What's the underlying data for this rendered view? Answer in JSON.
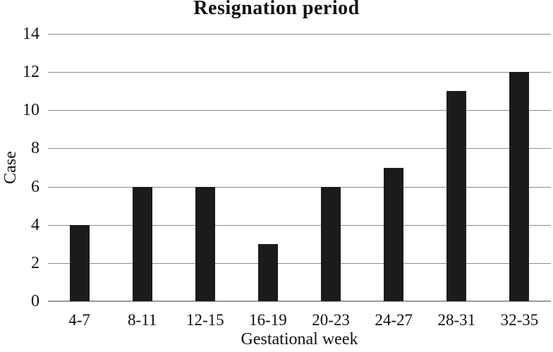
{
  "chart_data": {
    "type": "bar",
    "title": "Resignation period",
    "xlabel": "Gestational week",
    "ylabel": "Case",
    "categories": [
      "4-7",
      "8-11",
      "12-15",
      "16-19",
      "20-23",
      "24-27",
      "28-31",
      "32-35"
    ],
    "values": [
      4,
      6,
      6,
      3,
      6,
      7,
      11,
      12
    ],
    "yticks": [
      0,
      2,
      4,
      6,
      8,
      10,
      12,
      14
    ],
    "ylim": [
      0,
      14
    ],
    "grid": "horizontal-only",
    "legend": "none",
    "colors": {
      "bar": "#1b1b1b",
      "gridline": "#8c8c8c",
      "axis": "#9b9b9b",
      "background": "#ffffff",
      "text": "#111111"
    }
  }
}
